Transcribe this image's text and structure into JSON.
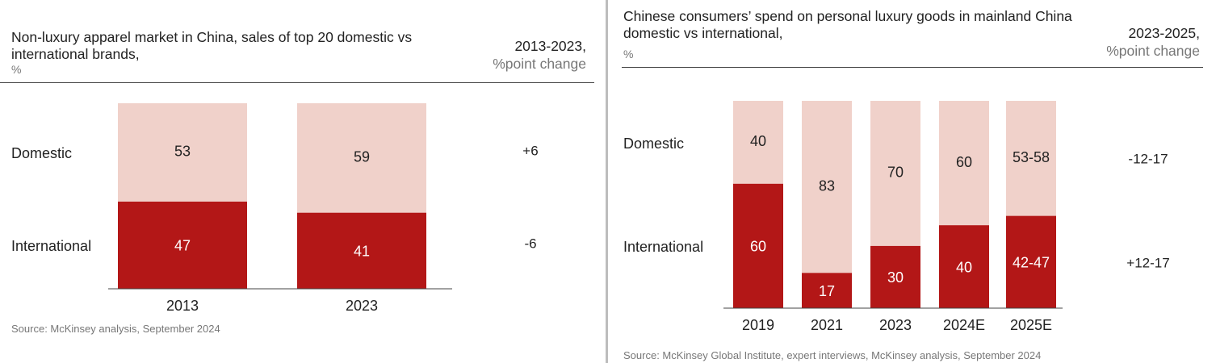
{
  "chart_data": [
    {
      "type": "bar",
      "stacked": true,
      "title": "Non-luxury apparel market in China, sales of top 20 domestic vs international brands,",
      "unit": "%",
      "change_heading": "2013-2023,",
      "change_subheading": "%point change",
      "categories": [
        "2013",
        "2023"
      ],
      "series": [
        {
          "name": "Domestic",
          "values": [
            53,
            59
          ],
          "labels": [
            "53",
            "59"
          ],
          "change": "+6",
          "color": "#f0d1ca"
        },
        {
          "name": "International",
          "values": [
            47,
            41
          ],
          "labels": [
            "47",
            "41"
          ],
          "change": "-6",
          "color": "#b31717"
        }
      ],
      "ylim": [
        0,
        100
      ],
      "source": "Source: McKinsey analysis, September 2024"
    },
    {
      "type": "bar",
      "stacked": true,
      "title": "Chinese consumers’ spend on personal luxury goods in mainland China domestic vs international,",
      "unit": "%",
      "change_heading": "2023-2025,",
      "change_subheading": "%point change",
      "categories": [
        "2019",
        "2021",
        "2023",
        "2024E",
        "2025E"
      ],
      "series": [
        {
          "name": "Domestic",
          "values": [
            40,
            83,
            70,
            60,
            55.5
          ],
          "labels": [
            "40",
            "83",
            "70",
            "60",
            "53-58"
          ],
          "change": "-12-17",
          "color": "#f0d1ca"
        },
        {
          "name": "International",
          "values": [
            60,
            17,
            30,
            40,
            44.5
          ],
          "labels": [
            "60",
            "17",
            "30",
            "40",
            "42-47"
          ],
          "change": "+12-17",
          "color": "#b31717"
        }
      ],
      "ylim": [
        0,
        100
      ],
      "source": "Source: McKinsey Global Institute, expert interviews, McKinsey analysis, September 2024"
    }
  ]
}
